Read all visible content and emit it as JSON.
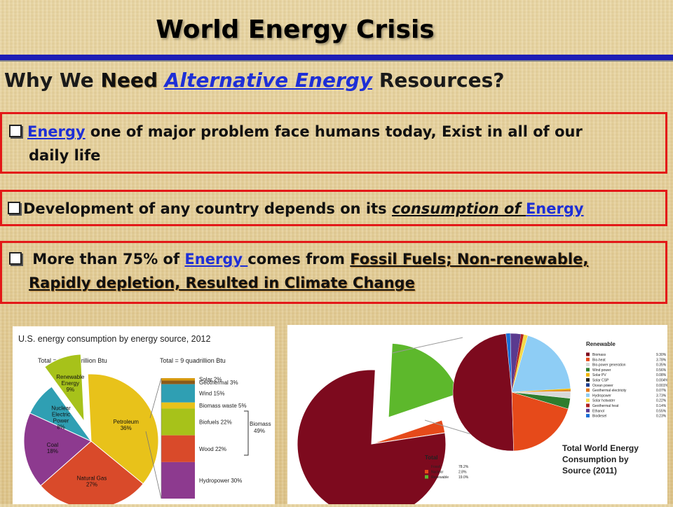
{
  "slide": {
    "title": "World Energy Crisis",
    "subtitle_pre": "Why We ",
    "subtitle_need": "Need",
    "subtitle_alt": "Alternative Energy",
    "subtitle_post": " Resources?",
    "bullet1_link": "Energy",
    "bullet1_text": " one of major problem face humans today, Exist in all of our",
    "bullet1_line2": "daily life",
    "bullet2_text": "Development of any country depends on its ",
    "bullet2_ital": "consumption of ",
    "bullet2_link": "Energy",
    "bullet3_pre": " More than 75% of ",
    "bullet3_link": "Energy ",
    "bullet3_mid": "comes from ",
    "bullet3_fossil": "Fossil Fuels; Non-renewable,",
    "bullet3_line2": "Rapidly depletion, Resulted in Climate Change"
  },
  "chart_data": [
    {
      "type": "pie",
      "title": "U.S. energy consumption by energy source, 2012",
      "total_label": "Total = 95 quadrillion Btu",
      "slices": [
        {
          "label": "Petroleum",
          "value": 36,
          "text": "36%",
          "color": "#e8c21a"
        },
        {
          "label": "Natural Gas",
          "value": 27,
          "text": "27%",
          "color": "#d94a2a"
        },
        {
          "label": "Coal",
          "value": 18,
          "text": "18%",
          "color": "#8d3a8f"
        },
        {
          "label": "Nuclear Electric Power",
          "value": 8,
          "text": "8%",
          "color": "#2f9fb3"
        },
        {
          "label": "Renewable Energy",
          "value": 9,
          "text": "9%",
          "color": "#a7c21a"
        }
      ],
      "breakdown_total_label": "Total = 9 quadrillion Btu",
      "breakdown": [
        {
          "label": "Solar 2%",
          "value": 2,
          "color": "#d79a10"
        },
        {
          "label": "Geothermal 3%",
          "value": 3,
          "color": "#8a5a1a"
        },
        {
          "label": "Wind 15%",
          "value": 15,
          "color": "#2f9fb3"
        },
        {
          "label": "Biomass waste 5%",
          "value": 5,
          "color": "#e8c21a"
        },
        {
          "label": "Biofuels 22%",
          "value": 22,
          "color": "#a7c21a"
        },
        {
          "label": "Wood 22%",
          "value": 22,
          "color": "#d94a2a"
        },
        {
          "label": "Hydropower 30%",
          "value": 30,
          "color": "#8d3a8f"
        }
      ],
      "bracket_label": "Biomass",
      "bracket_value": "49%"
    },
    {
      "type": "pie",
      "title": "Total World Energy Consumption by Source (2011)",
      "total": {
        "heading": "Total",
        "items": [
          {
            "label": "Fossil",
            "value": 78.2,
            "text": "78.2%",
            "color": "#7d0a1e"
          },
          {
            "label": "Nuclear",
            "value": 2.8,
            "text": "2.8%",
            "color": "#e64a1a"
          },
          {
            "label": "Renewable",
            "value": 19.0,
            "text": "19.0%",
            "color": "#5db82c"
          }
        ]
      },
      "renewable": {
        "heading": "Renewable",
        "items": [
          {
            "label": "Biomass",
            "value": 9.3,
            "text": "9.30%",
            "color": "#7d0a1e"
          },
          {
            "label": "Bio-heat",
            "value": 3.78,
            "text": "3.78%",
            "color": "#e64a1a"
          },
          {
            "label": "Bio-power generation",
            "value": 0.35,
            "text": "0.35%",
            "color": "#d8d8d8"
          },
          {
            "label": "Wind power",
            "value": 0.56,
            "text": "0.56%",
            "color": "#2e7d2e"
          },
          {
            "label": "Solar PV",
            "value": 0.08,
            "text": "0.08%",
            "color": "#f0b400"
          },
          {
            "label": "Solar CSP",
            "value": 0.004,
            "text": "0.004%",
            "color": "#222222"
          },
          {
            "label": "Ocean power",
            "value": 0.001,
            "text": "0.001%",
            "color": "#1b3d8f"
          },
          {
            "label": "Geothermal electricity",
            "value": 0.07,
            "text": "0.07%",
            "color": "#e67a1a"
          },
          {
            "label": "Hydropower",
            "value": 3.73,
            "text": "3.73%",
            "color": "#8ecdf5"
          },
          {
            "label": "Solar hotwater",
            "value": 0.22,
            "text": "0.22%",
            "color": "#f5d94a"
          },
          {
            "label": "Geothermal heat",
            "value": 0.14,
            "text": "0.14%",
            "color": "#b02020"
          },
          {
            "label": "Ethanol",
            "value": 0.55,
            "text": "0.55%",
            "color": "#5a3a8f"
          },
          {
            "label": "Biodiesel",
            "value": 0.23,
            "text": "0.23%",
            "color": "#1a6fd6"
          }
        ]
      }
    }
  ]
}
